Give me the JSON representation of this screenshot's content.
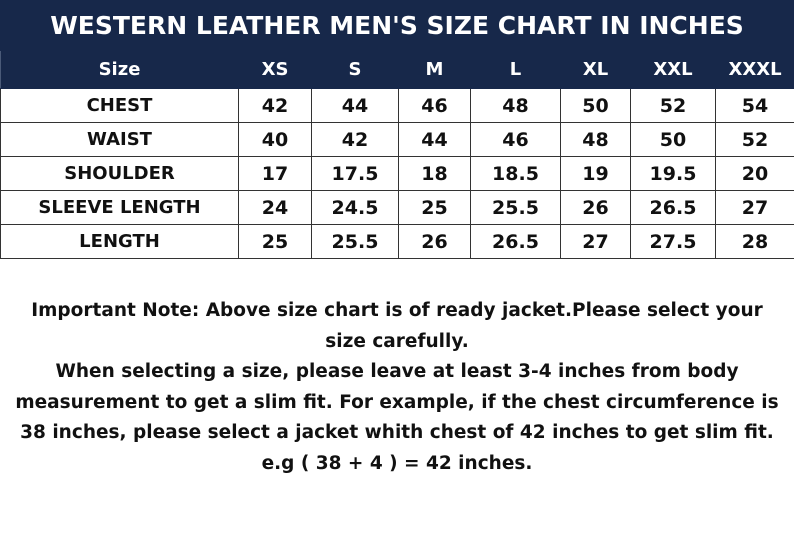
{
  "title": "WESTERN LEATHER MEN'S SIZE CHART IN INCHES",
  "table": {
    "headers": [
      "Size",
      "XS",
      "S",
      "M",
      "L",
      "XL",
      "XXL",
      "XXXL"
    ],
    "rows": [
      [
        "CHEST",
        "42",
        "44",
        "46",
        "48",
        "50",
        "52",
        "54"
      ],
      [
        "WAIST",
        "40",
        "42",
        "44",
        "46",
        "48",
        "50",
        "52"
      ],
      [
        "SHOULDER",
        "17",
        "17.5",
        "18",
        "18.5",
        "19",
        "19.5",
        "20"
      ],
      [
        "SLEEVE LENGTH",
        "24",
        "24.5",
        "25",
        "25.5",
        "26",
        "26.5",
        "27"
      ],
      [
        "LENGTH",
        "25",
        "25.5",
        "26",
        "26.5",
        "27",
        "27.5",
        "28"
      ]
    ]
  },
  "note": {
    "line1": "Important Note: Above size chart is of ready jacket.Please select your",
    "line2": "size carefully.",
    "line3": "When selecting a size, please leave at least 3-4 inches from body",
    "line4": "measurement to get a slim fit. For example, if the chest circumference is",
    "line5": "38 inches, please select a jacket whith chest of 42 inches to get slim fit.",
    "line6": "e.g ( 38 + 4 ) = 42 inches."
  },
  "colors": {
    "header_bg": "#17284a",
    "header_text": "#ffffff"
  }
}
